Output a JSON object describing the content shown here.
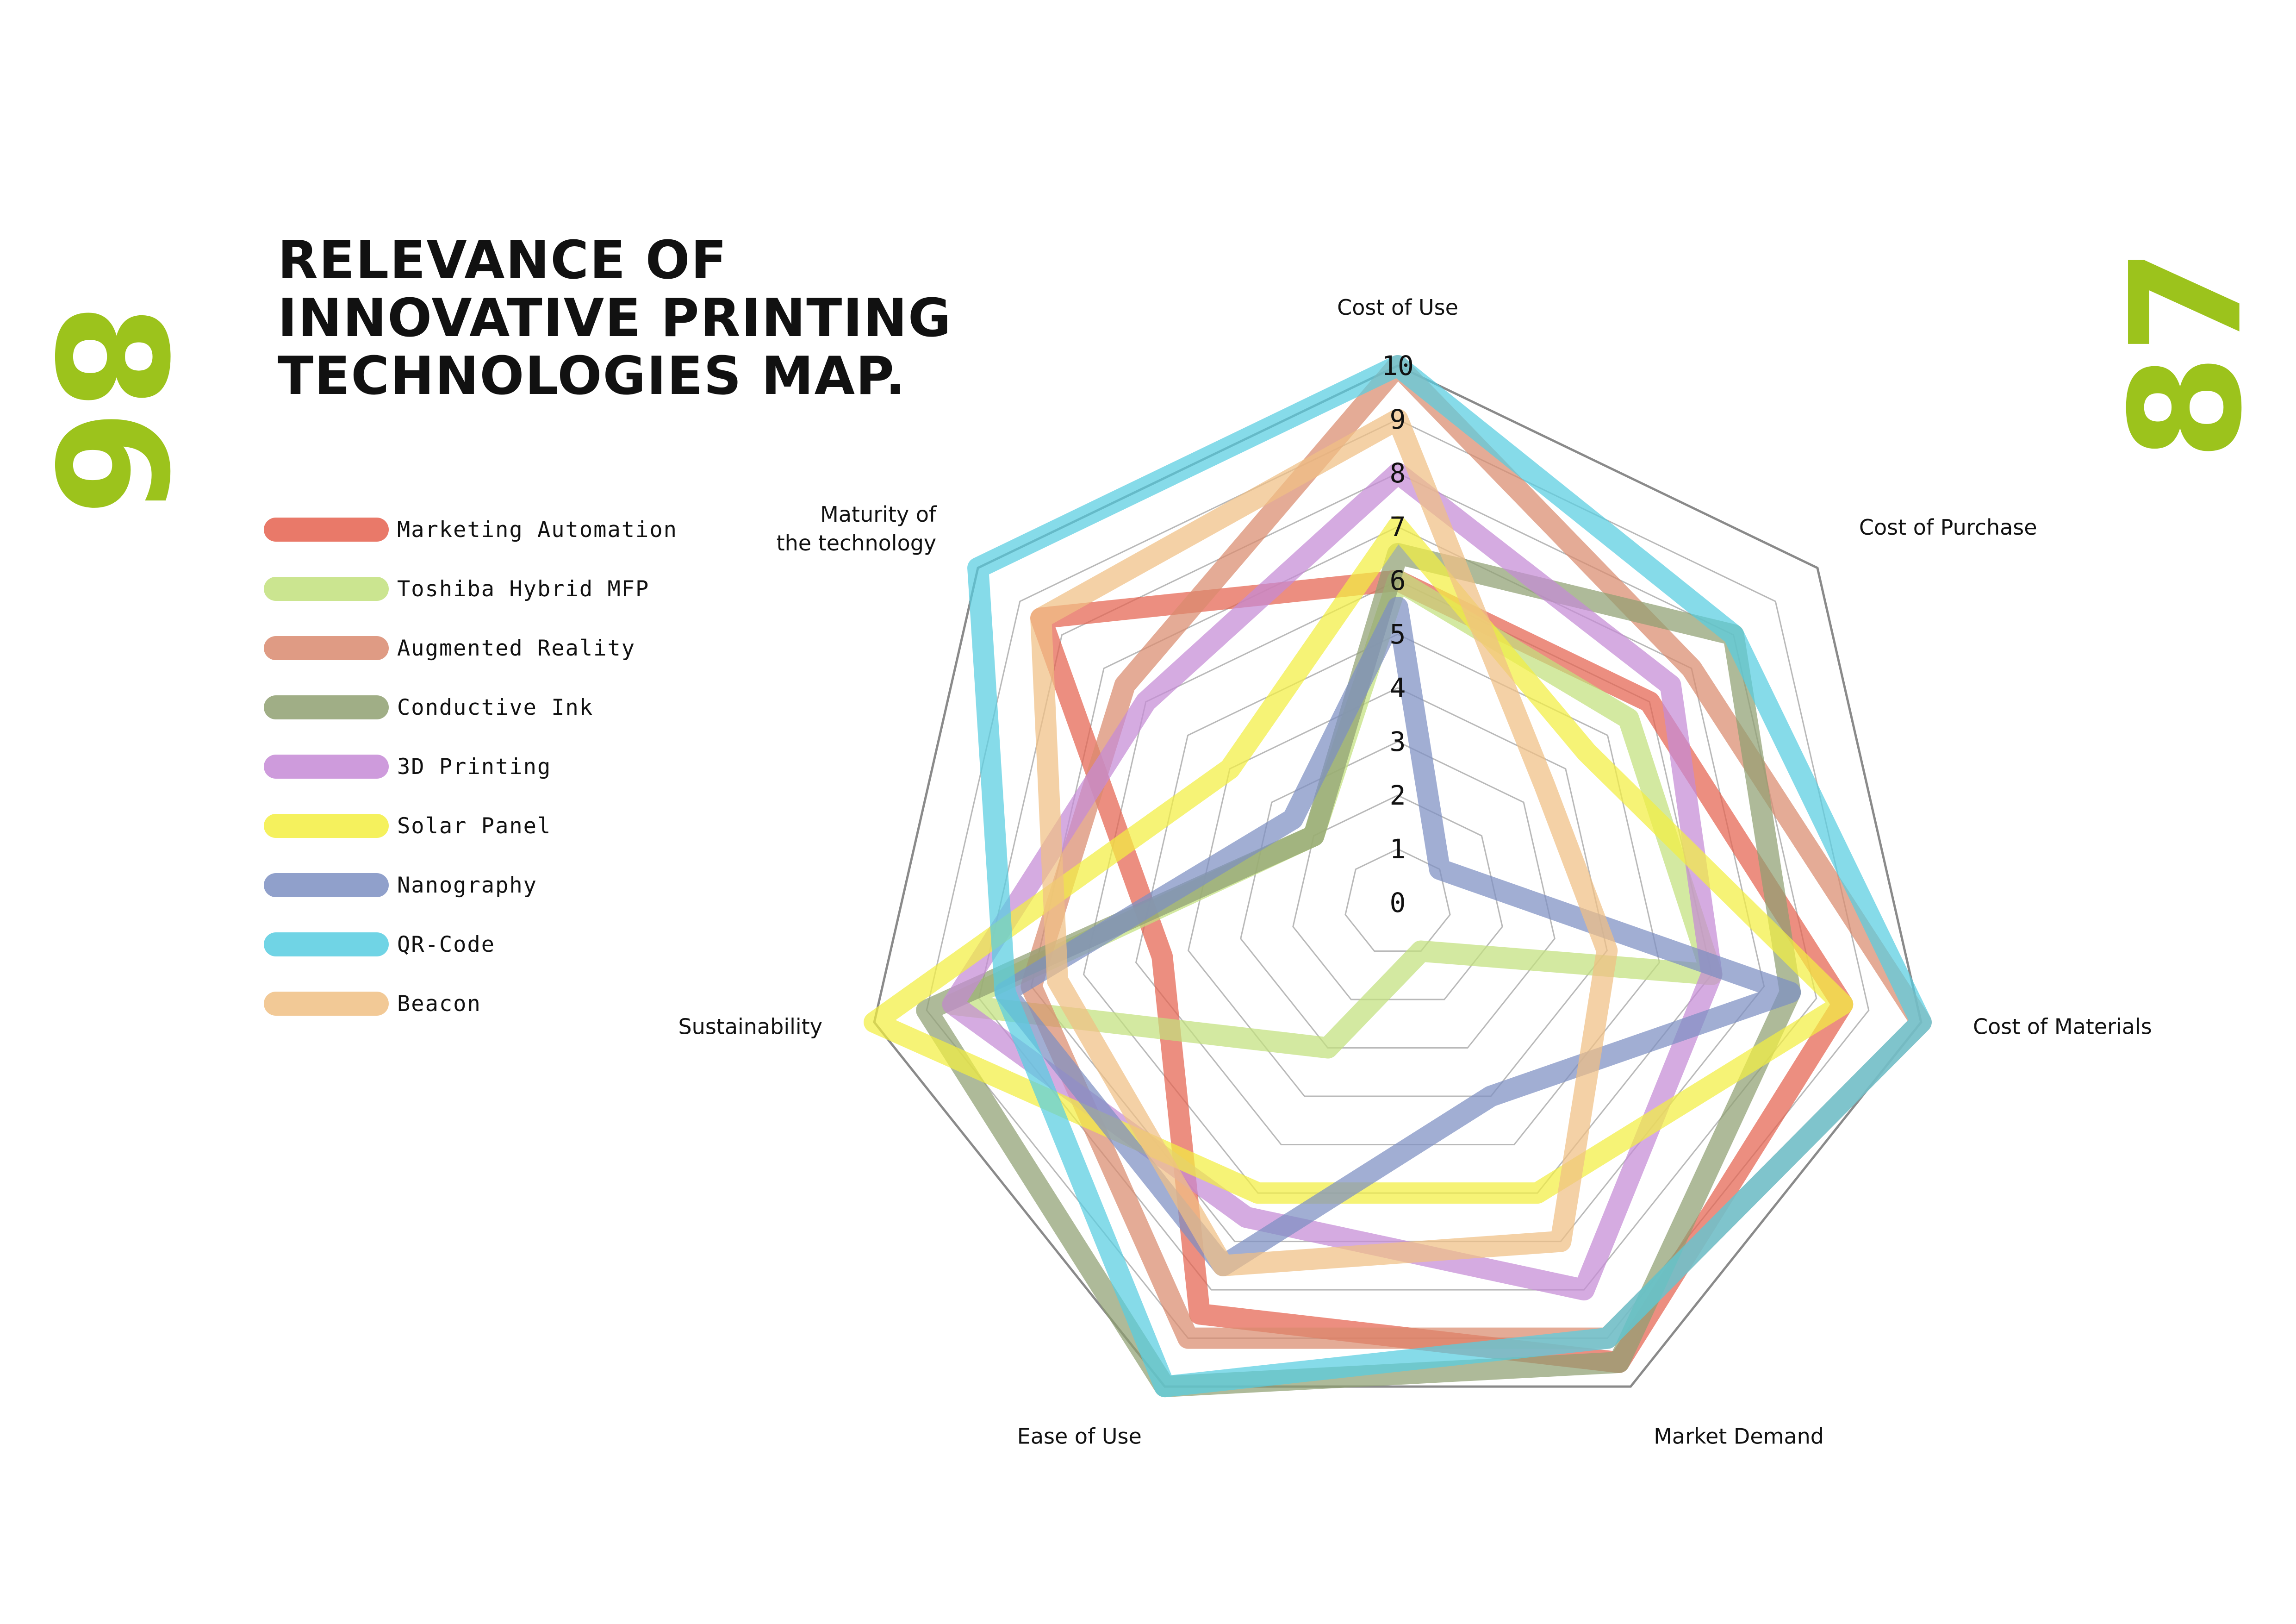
{
  "pages": {
    "left": "86",
    "right": "87"
  },
  "title": {
    "line1": "RELEVANCE OF",
    "line2": "INNOVATIVE PRINTING",
    "line3": "TECHNOLOGIES MAP."
  },
  "colors": {
    "page_number": "#9cc31c",
    "grid": "#b9b9b9",
    "grid_outer": "#8a8a8a"
  },
  "chart_data": {
    "type": "radar",
    "axes": [
      "Cost of Use",
      "Cost of Purchase",
      "Cost of Materials",
      "Market Demand",
      "Ease of Use",
      "Sustainability",
      "Maturity of the technology"
    ],
    "axis_labels": [
      [
        "Cost of Use"
      ],
      [
        "Cost of Purchase"
      ],
      [
        "Cost of Materials"
      ],
      [
        "Market Demand"
      ],
      [
        "Ease of Use"
      ],
      [
        "Sustainability"
      ],
      [
        "Maturity of",
        "the technology"
      ]
    ],
    "ticks": [
      "0",
      "1",
      "2",
      "3",
      "4",
      "5",
      "6",
      "7",
      "8",
      "9",
      "10"
    ],
    "range": [
      0,
      10
    ],
    "grid": true,
    "legend_position": "left",
    "series": [
      {
        "name": "Marketing Automation",
        "color": "#e5624f",
        "values": [
          6,
          6,
          8.5,
          9.5,
          8.5,
          4.5,
          8.5
        ]
      },
      {
        "name": "Toshiba Hybrid MFP",
        "color": "#c2e07d",
        "values": [
          6,
          5.5,
          6,
          1,
          3,
          8.5,
          2
        ]
      },
      {
        "name": "Augmented Reality",
        "color": "#d98a6e",
        "values": [
          10,
          7,
          10,
          9,
          9,
          7,
          6.5
        ]
      },
      {
        "name": "Conductive Ink",
        "color": "#8fa071",
        "values": [
          6.5,
          8,
          7.5,
          9.5,
          10,
          9,
          2
        ]
      },
      {
        "name": "3D Printing",
        "color": "#c58ad6",
        "values": [
          8,
          6.5,
          6,
          8,
          6.5,
          8.5,
          6
        ]
      },
      {
        "name": "Solar Panel",
        "color": "#f3ef41",
        "values": [
          7,
          4.5,
          8.5,
          6,
          6,
          10,
          4
        ]
      },
      {
        "name": "Nanography",
        "color": "#7d8fc2",
        "values": [
          5.5,
          1,
          7.5,
          4,
          7.5,
          7.5,
          2.5
        ]
      },
      {
        "name": "QR-Code",
        "color": "#57cde0",
        "values": [
          10,
          8,
          10,
          9,
          10,
          7.5,
          10
        ]
      },
      {
        "name": "Beacon",
        "color": "#f0bf84",
        "values": [
          9,
          3.5,
          4,
          7,
          7.5,
          6.5,
          8.5
        ]
      }
    ]
  }
}
